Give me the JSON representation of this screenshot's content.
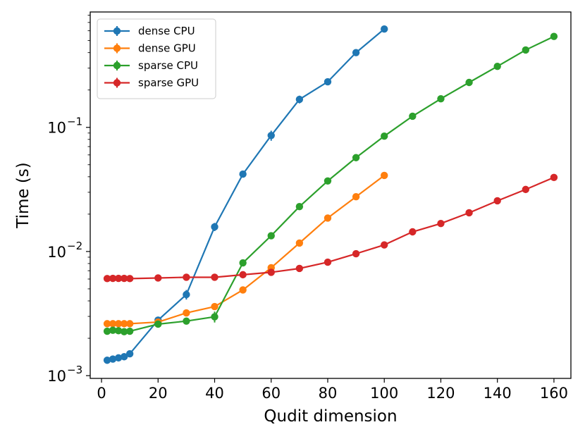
{
  "chart_data": {
    "type": "line",
    "xlabel": "Qudit dimension",
    "ylabel": "Time (s)",
    "yscale": "log",
    "xlim": [
      -4,
      166
    ],
    "ylim": [
      0.00095,
      0.85
    ],
    "legend_position": "top-left",
    "xticks": [
      0,
      20,
      40,
      60,
      80,
      100,
      120,
      140,
      160
    ],
    "xtick_labels": [
      "0",
      "20",
      "40",
      "60",
      "80",
      "100",
      "120",
      "140",
      "160"
    ],
    "yticks": [
      {
        "value": 0.001,
        "base": "10",
        "exp": "−3"
      },
      {
        "value": 0.01,
        "base": "10",
        "exp": "−2"
      },
      {
        "value": 0.1,
        "base": "10",
        "exp": "−1"
      }
    ],
    "series": [
      {
        "name": "dense CPU",
        "color": "#1f77b4",
        "x": [
          2,
          4,
          6,
          8,
          10,
          20,
          30,
          40,
          50,
          60,
          70,
          80,
          90,
          100
        ],
        "y": [
          0.00133,
          0.00136,
          0.00139,
          0.00142,
          0.0015,
          0.0028,
          0.0045,
          0.0158,
          0.042,
          0.086,
          0.168,
          0.233,
          0.4,
          0.62
        ],
        "err": [
          2e-05,
          2e-05,
          2e-05,
          3e-05,
          5e-05,
          0.0001,
          0.0004,
          0.0012,
          0.002,
          0.008,
          0.012,
          0.01,
          0.015,
          0.02
        ]
      },
      {
        "name": "dense GPU",
        "color": "#ff7f0e",
        "x": [
          2,
          4,
          6,
          8,
          10,
          20,
          30,
          40,
          50,
          60,
          70,
          80,
          90,
          100
        ],
        "y": [
          0.00262,
          0.00262,
          0.00262,
          0.00262,
          0.00262,
          0.0027,
          0.0032,
          0.0036,
          0.0049,
          0.0074,
          0.0117,
          0.0186,
          0.0276,
          0.041
        ],
        "err": [
          3e-05,
          3e-05,
          3e-05,
          3e-05,
          3e-05,
          5e-05,
          0.0001,
          0.0001,
          0.0002,
          0.0003,
          0.0004,
          0.0006,
          0.0008,
          0.001
        ]
      },
      {
        "name": "sparse CPU",
        "color": "#2ca02c",
        "x": [
          2,
          4,
          6,
          8,
          10,
          20,
          30,
          40,
          50,
          60,
          70,
          80,
          90,
          100,
          110,
          120,
          130,
          140,
          150,
          160
        ],
        "y": [
          0.00228,
          0.00232,
          0.0023,
          0.00226,
          0.00228,
          0.0026,
          0.00275,
          0.00298,
          0.0081,
          0.0134,
          0.023,
          0.037,
          0.057,
          0.085,
          0.123,
          0.17,
          0.23,
          0.31,
          0.42,
          0.54
        ],
        "err": [
          5e-05,
          5e-05,
          5e-05,
          5e-05,
          5e-05,
          6e-05,
          0.0001,
          0.0003,
          0.0003,
          0.0004,
          0.0006,
          0.001,
          0.002,
          0.002,
          0.003,
          0.004,
          0.005,
          0.006,
          0.008,
          0.01
        ]
      },
      {
        "name": "sparse GPU",
        "color": "#d62728",
        "x": [
          2,
          4,
          6,
          8,
          10,
          20,
          30,
          40,
          50,
          60,
          70,
          80,
          90,
          100,
          110,
          120,
          130,
          140,
          150,
          160
        ],
        "y": [
          0.00605,
          0.00607,
          0.00607,
          0.00607,
          0.00605,
          0.00612,
          0.0062,
          0.0062,
          0.0065,
          0.0068,
          0.0073,
          0.0082,
          0.0096,
          0.0113,
          0.0144,
          0.0168,
          0.0205,
          0.0256,
          0.0316,
          0.0395
        ],
        "err": [
          5e-05,
          5e-05,
          5e-05,
          5e-05,
          5e-05,
          5e-05,
          5e-05,
          5e-05,
          6e-05,
          7e-05,
          8e-05,
          0.0001,
          0.0001,
          0.0002,
          0.0002,
          0.0003,
          0.0003,
          0.0004,
          0.0005,
          0.0006
        ]
      }
    ]
  }
}
